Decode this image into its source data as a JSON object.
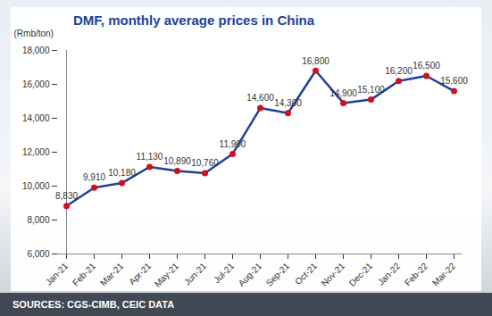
{
  "chart_data": {
    "type": "line",
    "title": "DMF, monthly average prices in China",
    "y_label": "(Rmb/ton)",
    "caption": "SOURCES: CGS-CIMB, CEIC DATA",
    "categories": [
      "Jan-21",
      "Feb-21",
      "Mar-21",
      "Apr-21",
      "May-21",
      "Jun-21",
      "Jul-21",
      "Aug-21",
      "Sep-21",
      "Oct-21",
      "Nov-21",
      "Dec-21",
      "Jan-22",
      "Feb-22",
      "Mar-22"
    ],
    "values": [
      8830,
      9910,
      10180,
      11130,
      10890,
      10760,
      11900,
      14600,
      14300,
      16800,
      14900,
      15100,
      16200,
      16500,
      15600
    ],
    "value_labels": [
      "8,830",
      "9,910",
      "10,180",
      "11,130",
      "10,890",
      "10,760",
      "11,900",
      "14,600",
      "14,300",
      "16,800",
      "14,900",
      "15,100",
      "16,200",
      "16,500",
      "15,600"
    ],
    "color": "#1f3f99",
    "marker": "circle",
    "data_labels": true,
    "grid": false,
    "ylim": [
      6000,
      18000
    ],
    "yticks": [
      {
        "value": 6000,
        "label": "6,000"
      },
      {
        "value": 8000,
        "label": "8,000"
      },
      {
        "value": 10000,
        "label": "10,000"
      },
      {
        "value": 12000,
        "label": "12,000"
      },
      {
        "value": 14000,
        "label": "14,000"
      },
      {
        "value": 16000,
        "label": "16,000"
      },
      {
        "value": 18000,
        "label": "18,000"
      }
    ]
  }
}
